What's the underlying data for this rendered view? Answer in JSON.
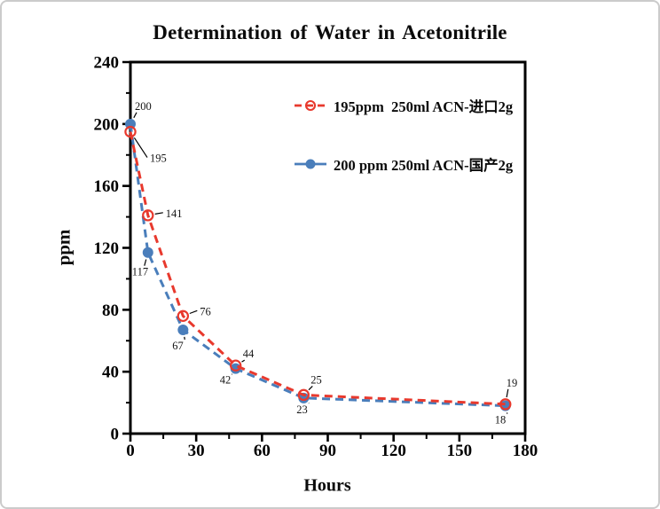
{
  "frame": {
    "background": "#ffffff",
    "border_color": "#cbcbcb"
  },
  "chart_data": {
    "type": "line",
    "title": "Determination of Water in Acetonitrile",
    "xlabel": "Hours",
    "ylabel": "ppm",
    "xlim": [
      0,
      180
    ],
    "ylim": [
      0,
      240
    ],
    "x_major_ticks": [
      "0",
      "30",
      "60",
      "90",
      "120",
      "150",
      "180"
    ],
    "x_minor_ticks": [
      15,
      45,
      75,
      105,
      135,
      165
    ],
    "y_major_ticks": [
      "0",
      "40",
      "80",
      "120",
      "160",
      "200",
      "240"
    ],
    "y_minor_ticks": [
      20,
      60,
      100,
      140,
      180,
      220
    ],
    "grid": false,
    "legend_position": "inside-top-center",
    "axis_color": "#000000",
    "leader_line_color": "#000000",
    "series": [
      {
        "name": "195ppm  250ml ACN-进口2g",
        "color": "#e8392d",
        "marker": "open-circle",
        "line_style": "dashed",
        "x": [
          0,
          8,
          24,
          48,
          79,
          171
        ],
        "values": [
          195,
          141,
          76,
          44,
          25,
          19
        ],
        "point_labels": [
          "195",
          "141",
          "76",
          "44",
          "25",
          "19"
        ]
      },
      {
        "name": "200 ppm 250ml ACN-国产2g",
        "color": "#4a7ebb",
        "marker": "filled-circle",
        "line_style": "dashed",
        "x": [
          0,
          8,
          24,
          48,
          79,
          171
        ],
        "values": [
          200,
          117,
          67,
          42,
          23,
          18
        ],
        "point_labels": [
          "200",
          "117",
          "67",
          "42",
          "23",
          "18"
        ]
      }
    ]
  }
}
